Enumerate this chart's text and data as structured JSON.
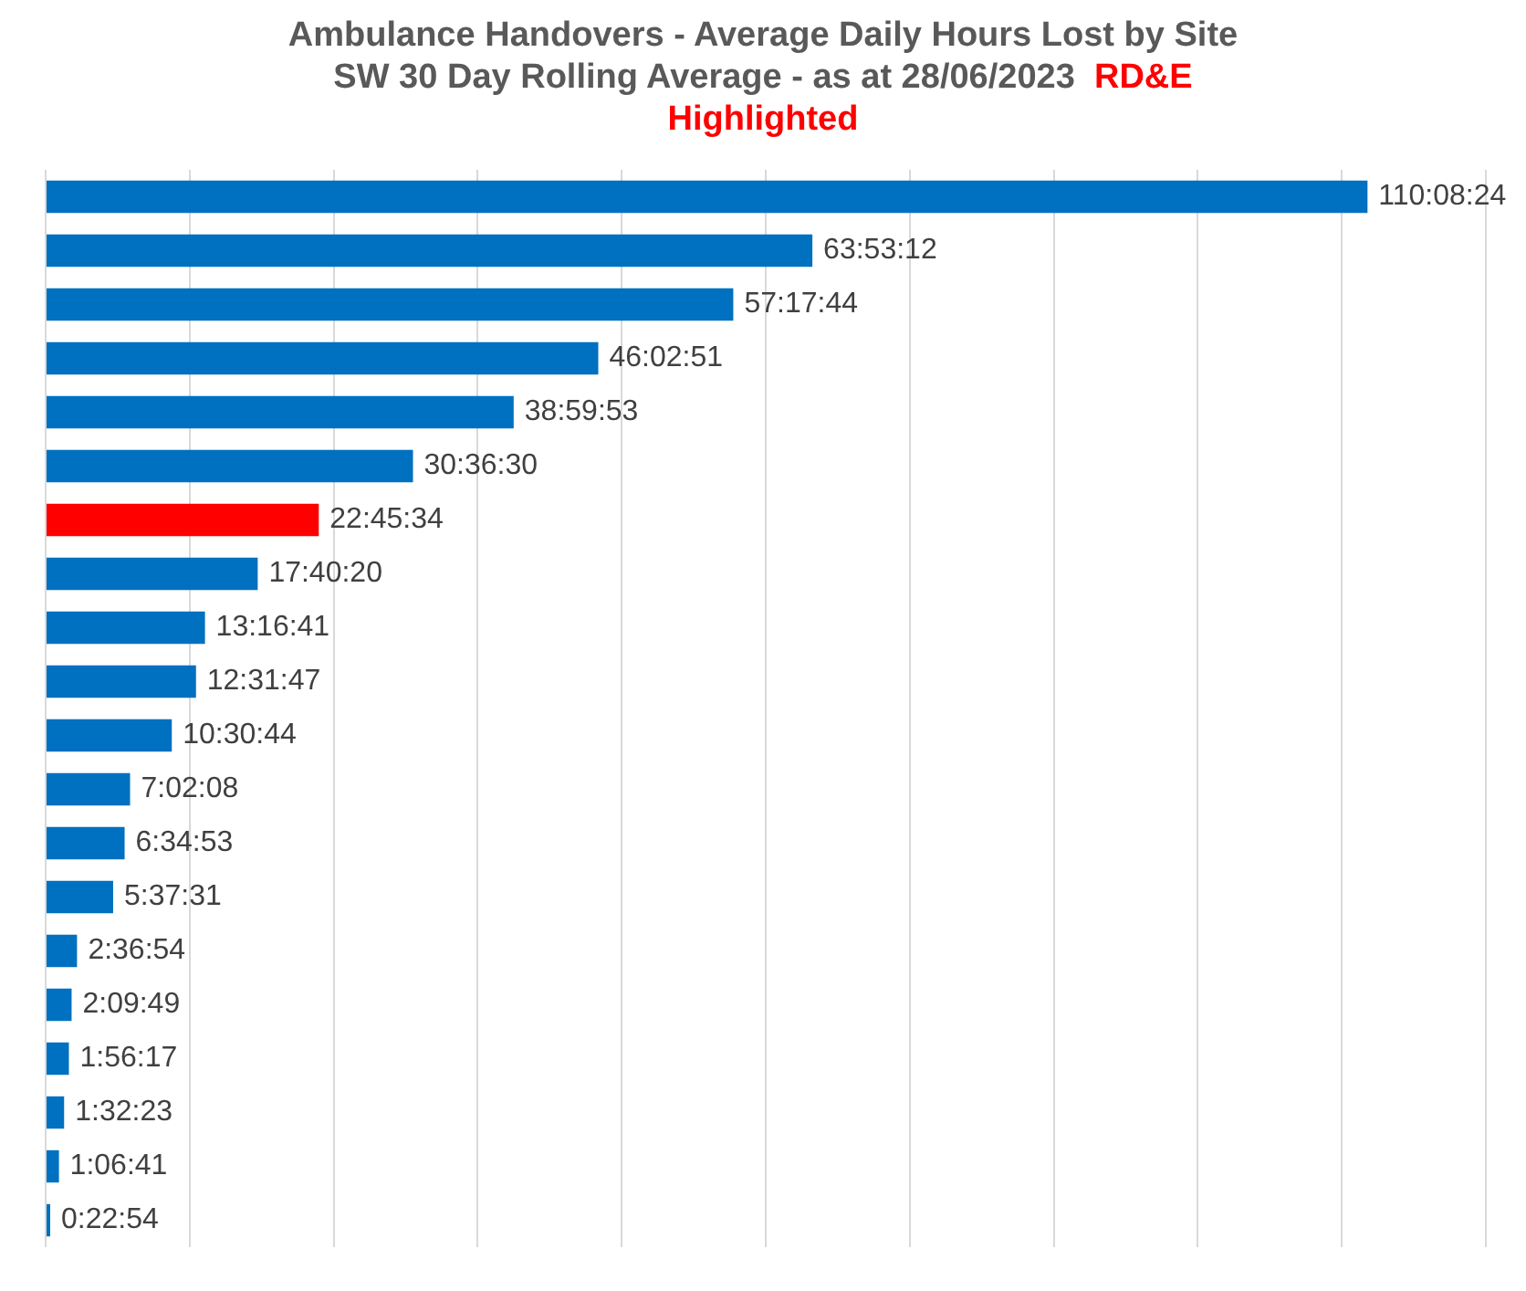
{
  "chart_data": {
    "type": "bar",
    "orientation": "horizontal",
    "title": "Ambulance Handovers - Average Daily Hours Lost by Site\nSW 30 Day Rolling Average - as at 28/06/2023",
    "subtitle": "RD&E Highlighted",
    "categories": [
      null,
      null,
      null,
      null,
      null,
      null,
      null,
      null,
      null,
      null,
      null,
      null,
      null,
      null,
      null,
      null,
      null,
      null,
      null,
      null
    ],
    "values": [
      110.14,
      63.88667,
      57.29556,
      46.0475,
      38.99806,
      30.60833,
      22.75944,
      17.67222,
      13.27806,
      12.52972,
      10.51222,
      7.03556,
      6.58139,
      5.62528,
      2.615,
      2.16361,
      1.93806,
      1.53972,
      1.11139,
      0.38167
    ],
    "value_labels": [
      "110:08:24",
      "63:53:12",
      "57:17:44",
      "46:02:51",
      "38:59:53",
      "30:36:30",
      "22:45:34",
      "17:40:20",
      "13:16:41",
      "12:31:47",
      "10:30:44",
      "7:02:08",
      "6:34:53",
      "5:37:31",
      "2:36:54",
      "2:09:49",
      "1:56:17",
      "1:32:23",
      "1:06:41",
      "0:22:54"
    ],
    "colors": [
      "#0070c0",
      "#0070c0",
      "#0070c0",
      "#0070c0",
      "#0070c0",
      "#0070c0",
      "#ff0000",
      "#0070c0",
      "#0070c0",
      "#0070c0",
      "#0070c0",
      "#0070c0",
      "#0070c0",
      "#0070c0",
      "#0070c0",
      "#0070c0",
      "#0070c0",
      "#0070c0",
      "#0070c0",
      "#0070c0"
    ],
    "xlim": [
      0,
      120
    ],
    "xticks": [
      {
        "value": 0,
        "label": null
      },
      {
        "value": 12,
        "label": null
      },
      {
        "value": 24,
        "label": null
      },
      {
        "value": 36,
        "label": null
      },
      {
        "value": 48,
        "label": null
      },
      {
        "value": 60,
        "label": null
      },
      {
        "value": 72,
        "label": null
      },
      {
        "value": 84,
        "label": null
      },
      {
        "value": 96,
        "label": null
      },
      {
        "value": 108,
        "label": null
      },
      {
        "value": 120,
        "label": null
      }
    ],
    "tick_labels": false,
    "grid": "x",
    "legend": false
  }
}
